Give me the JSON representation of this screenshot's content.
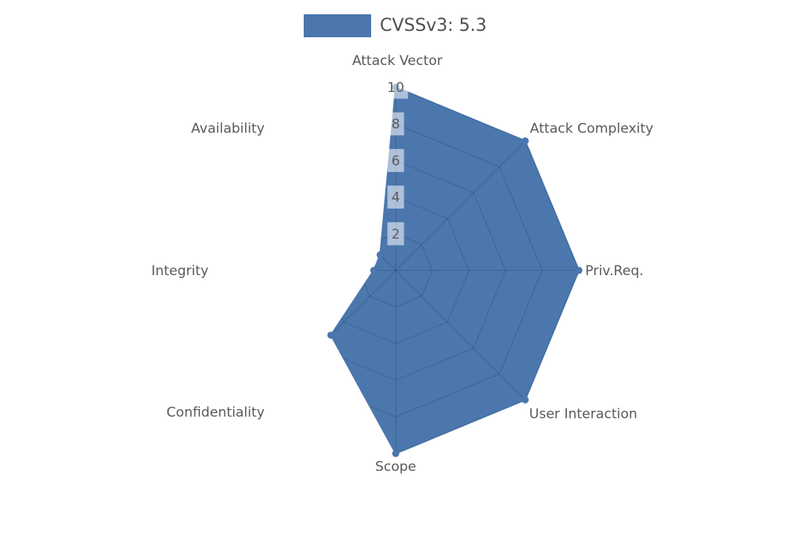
{
  "chart_data": {
    "type": "radar",
    "legend": {
      "label": "CVSSv3: 5.3",
      "position": "top-center"
    },
    "categories": [
      "Attack Vector",
      "Attack Complexity",
      "Priv.Req.",
      "User Interaction",
      "Scope",
      "Confidentiality",
      "Integrity",
      "Availability"
    ],
    "series": [
      {
        "name": "CVSSv3: 5.3",
        "values": [
          10,
          10,
          10,
          10,
          10,
          5,
          1.2,
          1.2
        ]
      }
    ],
    "radial_ticks": [
      "2",
      "4",
      "6",
      "8",
      "10"
    ],
    "rlim": [
      0,
      10
    ],
    "grid": "on",
    "start_axis": "top",
    "direction": "clockwise"
  },
  "colors": {
    "series_fill": "#4b77ad",
    "grid_line": "rgba(0,0,0,0.16)",
    "axis_label": "#595959",
    "tick_label": "#5c5c5c",
    "tick_box": "rgba(255,255,255,0.55)",
    "legend_text": "#4f4f4f",
    "background": "#ffffff"
  }
}
